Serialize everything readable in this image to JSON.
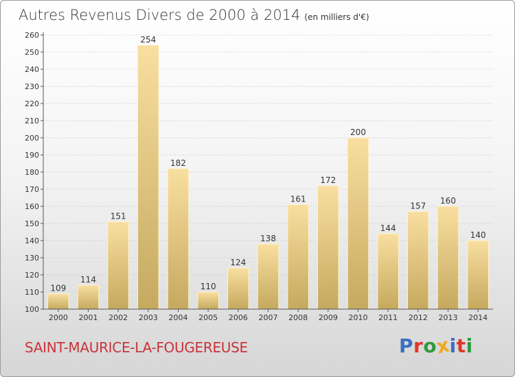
{
  "header": {
    "title": "Autres Revenus Divers de 2000 à 2014",
    "unit": "(en milliers d'€)"
  },
  "footer": {
    "city": "SAINT-MAURICE-LA-FOUGEREUSE",
    "logo_text": "Proxiti",
    "logo_colors": [
      "#3b6fc4",
      "#e0372b",
      "#2f9a3c",
      "#f0a81c",
      "#3b6fc4",
      "#e0372b",
      "#2f9a3c"
    ]
  },
  "colors": {
    "bar_light": "#f9dfa0",
    "bar_dark": "#c5a95f",
    "grid": "#c8c8c8",
    "axis": "#555555"
  },
  "chart_data": {
    "type": "bar",
    "title": "Autres Revenus Divers de 2000 à 2014",
    "xlabel": "",
    "ylabel": "",
    "categories": [
      "2000",
      "2001",
      "2002",
      "2003",
      "2004",
      "2005",
      "2006",
      "2007",
      "2008",
      "2009",
      "2010",
      "2011",
      "2012",
      "2013",
      "2014"
    ],
    "values": [
      109,
      114,
      151,
      254,
      182,
      110,
      124,
      138,
      161,
      172,
      200,
      144,
      157,
      160,
      140
    ],
    "ylim": [
      100,
      260
    ],
    "ytick_step": 10,
    "grid": true,
    "data_labels": true
  }
}
